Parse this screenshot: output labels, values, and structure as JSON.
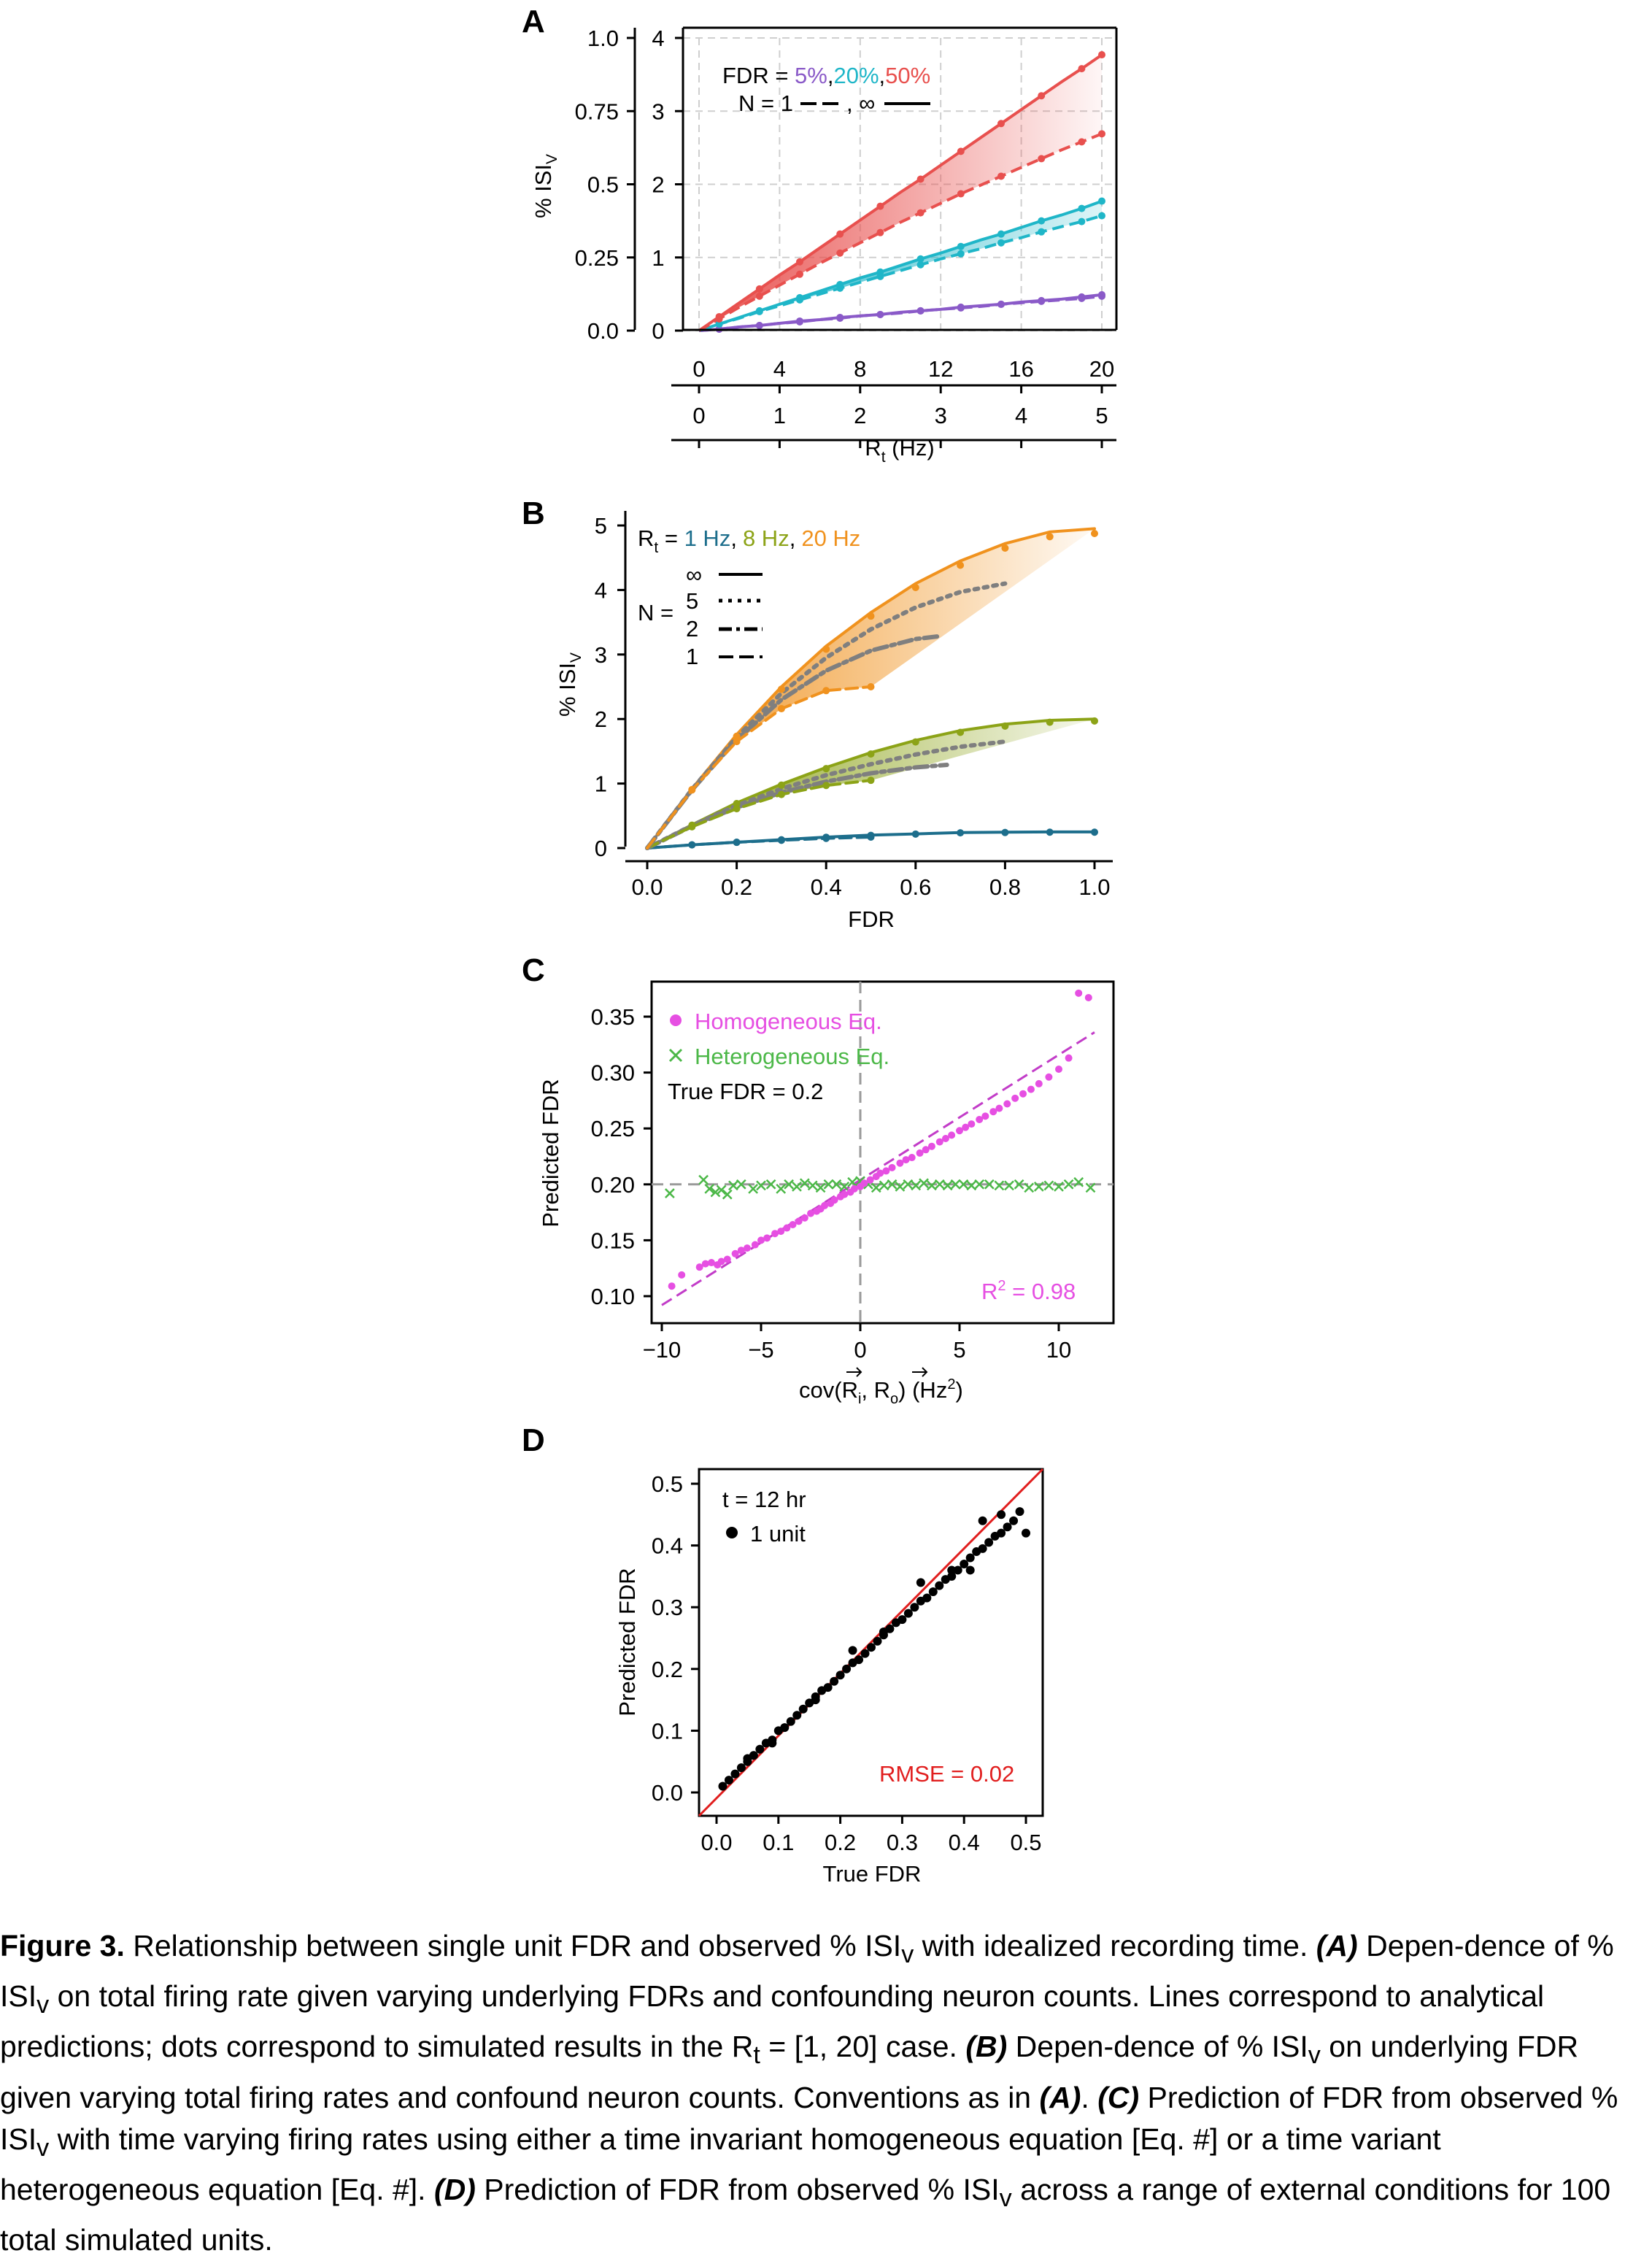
{
  "colors": {
    "fdr5": "#8A5AC8",
    "fdr20": "#1FB6C8",
    "fdr50": "#E8504E",
    "r1": "#1D6E8C",
    "r8": "#8CA317",
    "r20": "#F0921E",
    "homogeneous": "#E64FE2",
    "heterogeneous": "#4CB848",
    "fit": "#C23CC8",
    "rmse": "#E11E1E",
    "grid": "#cfcfcf"
  },
  "panels": {
    "a": {
      "letter": "A",
      "ylabel_main": "% ISI",
      "ylabel_sub": "V",
      "xlabel_main": "R",
      "xlabel_sub": "t",
      "xlabel_unit": " (Hz)",
      "legend_fdr_prefix": "FDR = ",
      "legend_fdr_5": "5%",
      "legend_fdr_20": "20%",
      "legend_fdr_50": "50%",
      "legend_comma": ",",
      "legend_n_prefix": "N = 1",
      "legend_n_mid": ", ∞"
    },
    "b": {
      "letter": "B",
      "ylabel_main": "% ISI",
      "ylabel_sub": "V",
      "xlabel": "FDR",
      "legend_rt_main": "R",
      "legend_rt_sub": "t",
      "legend_eq": " = ",
      "legend_r1": "1 Hz",
      "legend_r8": "8 Hz",
      "legend_r20": "20 Hz",
      "legend_comma": ",",
      "legend_n": "N =",
      "legend_ninf": "∞",
      "legend_n5": "5",
      "legend_n2": "2",
      "legend_n1": "1"
    },
    "c": {
      "letter": "C",
      "ylabel": "Predicted FDR",
      "xlabel_pre": "cov(",
      "xlabel_r": "R",
      "xlabel_i": "i",
      "xlabel_o": "o",
      "xlabel_sep": ", ",
      "xlabel_post": ") (Hz",
      "xlabel_sq": "2",
      "xlabel_end": ")",
      "legend_hom": "Homogeneous Eq.",
      "legend_het": "Heterogeneous Eq.",
      "true_fdr": "True FDR = 0.2",
      "r2_main": "R",
      "r2_sup": "2",
      "r2_val": " = 0.98"
    },
    "d": {
      "letter": "D",
      "ylabel": "Predicted FDR",
      "xlabel": "True FDR",
      "legend_t": "t = 12 hr",
      "legend_unit": "1 unit",
      "rmse": "RMSE = 0.02"
    }
  },
  "chart_data": [
    {
      "id": "A",
      "type": "line",
      "ylabel": "% ISIv",
      "xlabel": "Rt (Hz)",
      "x_top_ticks": [
        0,
        4,
        8,
        12,
        16,
        20
      ],
      "x_bottom_ticks": [
        0,
        1,
        2,
        3,
        4,
        5
      ],
      "y_right_ticks": [
        0,
        1,
        2,
        3,
        4
      ],
      "y_left_ticks": [
        "0.0",
        "0.25",
        "0.5",
        "0.75",
        "1.0"
      ],
      "xlim": [
        0,
        20
      ],
      "ylim": [
        0,
        4
      ],
      "grid": true,
      "legend_position": "top-left",
      "x": [
        0,
        1,
        2,
        3,
        4,
        5,
        6,
        7,
        8,
        9,
        10,
        11,
        12,
        13,
        14,
        15,
        16,
        17,
        18,
        19,
        20
      ],
      "series": [
        {
          "name": "5%",
          "N": "∞",
          "values": [
            0,
            0.02,
            0.05,
            0.07,
            0.1,
            0.13,
            0.15,
            0.18,
            0.2,
            0.22,
            0.25,
            0.27,
            0.29,
            0.32,
            0.34,
            0.36,
            0.39,
            0.41,
            0.43,
            0.46,
            0.49
          ]
        },
        {
          "name": "5%",
          "N": "1",
          "values": [
            0,
            0.02,
            0.05,
            0.07,
            0.1,
            0.12,
            0.15,
            0.17,
            0.2,
            0.22,
            0.24,
            0.27,
            0.29,
            0.31,
            0.33,
            0.36,
            0.38,
            0.4,
            0.42,
            0.44,
            0.47
          ]
        },
        {
          "name": "20%",
          "N": "∞",
          "values": [
            0,
            0.09,
            0.18,
            0.27,
            0.36,
            0.45,
            0.54,
            0.63,
            0.72,
            0.8,
            0.89,
            0.98,
            1.06,
            1.15,
            1.24,
            1.32,
            1.41,
            1.5,
            1.58,
            1.67,
            1.77
          ]
        },
        {
          "name": "20%",
          "N": "1",
          "values": [
            0,
            0.09,
            0.17,
            0.26,
            0.34,
            0.42,
            0.5,
            0.58,
            0.66,
            0.74,
            0.82,
            0.9,
            0.98,
            1.05,
            1.12,
            1.2,
            1.27,
            1.35,
            1.42,
            1.49,
            1.57
          ]
        },
        {
          "name": "50%",
          "N": "∞",
          "values": [
            0,
            0.19,
            0.38,
            0.57,
            0.76,
            0.94,
            1.13,
            1.32,
            1.51,
            1.7,
            1.89,
            2.07,
            2.26,
            2.45,
            2.64,
            2.83,
            3.02,
            3.21,
            3.4,
            3.58,
            3.77
          ]
        },
        {
          "name": "50%",
          "N": "1",
          "values": [
            0,
            0.16,
            0.32,
            0.47,
            0.62,
            0.77,
            0.92,
            1.06,
            1.2,
            1.34,
            1.48,
            1.61,
            1.74,
            1.87,
            1.99,
            2.11,
            2.23,
            2.35,
            2.47,
            2.58,
            2.69
          ]
        }
      ]
    },
    {
      "id": "B",
      "type": "line",
      "ylabel": "% ISIv",
      "xlabel": "FDR",
      "x_ticks": [
        "0.0",
        "0.2",
        "0.4",
        "0.6",
        "0.8",
        "1.0"
      ],
      "y_ticks": [
        0,
        1,
        2,
        3,
        4,
        5
      ],
      "xlim": [
        0,
        1
      ],
      "ylim": [
        0,
        5
      ],
      "grid": false,
      "legend_position": "top-left",
      "series": [
        {
          "name": "1 Hz",
          "N": "∞",
          "x": [
            0,
            0.1,
            0.2,
            0.3,
            0.4,
            0.5,
            0.6,
            0.7,
            0.8,
            0.9,
            1.0
          ],
          "values": [
            0,
            0.05,
            0.09,
            0.13,
            0.17,
            0.2,
            0.22,
            0.24,
            0.245,
            0.25,
            0.25
          ]
        },
        {
          "name": "1 Hz",
          "N": "1",
          "x": [
            0,
            0.1,
            0.2,
            0.3,
            0.4,
            0.5
          ],
          "values": [
            0,
            0.05,
            0.09,
            0.12,
            0.15,
            0.17
          ]
        },
        {
          "name": "8 Hz",
          "N": "∞",
          "x": [
            0,
            0.1,
            0.2,
            0.3,
            0.4,
            0.5,
            0.6,
            0.7,
            0.8,
            0.9,
            1.0
          ],
          "values": [
            0,
            0.36,
            0.7,
            0.99,
            1.25,
            1.48,
            1.67,
            1.82,
            1.92,
            1.98,
            2.0
          ]
        },
        {
          "name": "8 Hz",
          "N": "5",
          "x": [
            0,
            0.1,
            0.2,
            0.3,
            0.4,
            0.5,
            0.6,
            0.7,
            0.8
          ],
          "values": [
            0,
            0.35,
            0.66,
            0.92,
            1.13,
            1.3,
            1.45,
            1.57,
            1.65
          ]
        },
        {
          "name": "8 Hz",
          "N": "2",
          "x": [
            0,
            0.1,
            0.2,
            0.3,
            0.4,
            0.5,
            0.6,
            0.67
          ],
          "values": [
            0,
            0.34,
            0.63,
            0.86,
            1.03,
            1.16,
            1.25,
            1.29
          ]
        },
        {
          "name": "8 Hz",
          "N": "1",
          "x": [
            0,
            0.1,
            0.2,
            0.3,
            0.4,
            0.5
          ],
          "values": [
            0,
            0.33,
            0.61,
            0.83,
            0.97,
            1.05
          ]
        },
        {
          "name": "20 Hz",
          "N": "∞",
          "x": [
            0,
            0.1,
            0.2,
            0.3,
            0.4,
            0.5,
            0.6,
            0.7,
            0.8,
            0.9,
            1.0
          ],
          "values": [
            0,
            0.92,
            1.76,
            2.5,
            3.13,
            3.65,
            4.1,
            4.45,
            4.72,
            4.9,
            4.95
          ]
        },
        {
          "name": "20 Hz",
          "N": "5",
          "x": [
            0,
            0.1,
            0.2,
            0.3,
            0.4,
            0.5,
            0.6,
            0.7,
            0.8
          ],
          "values": [
            0,
            0.91,
            1.72,
            2.4,
            2.95,
            3.39,
            3.73,
            3.97,
            4.1
          ]
        },
        {
          "name": "20 Hz",
          "N": "2",
          "x": [
            0,
            0.1,
            0.2,
            0.3,
            0.4,
            0.5,
            0.6,
            0.65
          ],
          "values": [
            0,
            0.9,
            1.68,
            2.3,
            2.75,
            3.06,
            3.24,
            3.28
          ]
        },
        {
          "name": "20 Hz",
          "N": "1",
          "x": [
            0,
            0.1,
            0.2,
            0.3,
            0.4,
            0.5
          ],
          "values": [
            0,
            0.9,
            1.65,
            2.16,
            2.44,
            2.5
          ]
        }
      ]
    },
    {
      "id": "C",
      "type": "scatter",
      "ylabel": "Predicted FDR",
      "xlabel": "cov(Ri, Ro) (Hz²)",
      "x_ticks": [
        -10,
        -5,
        0,
        5,
        10
      ],
      "y_ticks": [
        "0.10",
        "0.15",
        "0.20",
        "0.25",
        "0.30",
        "0.35"
      ],
      "xlim": [
        -10.5,
        12.5
      ],
      "ylim": [
        0.085,
        0.385
      ],
      "grid": false,
      "legend_position": "top-left",
      "reference_lines": {
        "x": 0,
        "y": 0.2
      },
      "fit": {
        "x": [
          -10,
          11.8
        ],
        "y": [
          0.092,
          0.336
        ]
      },
      "series": [
        {
          "name": "Homogeneous Eq.",
          "x": [
            -9.5,
            -9.0,
            -8.1,
            -7.8,
            -7.5,
            -7.2,
            -7.0,
            -6.7,
            -6.3,
            -6.0,
            -5.7,
            -5.3,
            -5.0,
            -4.7,
            -4.3,
            -4.0,
            -3.7,
            -3.4,
            -3.1,
            -2.8,
            -2.5,
            -2.2,
            -2.0,
            -1.8,
            -1.5,
            -1.3,
            -1.0,
            -0.8,
            -0.5,
            -0.3,
            0,
            0.2,
            0.5,
            0.8,
            1.0,
            1.3,
            1.6,
            2.0,
            2.3,
            2.6,
            3.0,
            3.3,
            3.6,
            4.0,
            4.3,
            4.6,
            5.0,
            5.3,
            5.6,
            6.0,
            6.3,
            6.7,
            7.0,
            7.4,
            7.8,
            8.2,
            8.6,
            9.0,
            9.5,
            10.0,
            10.5,
            11.0,
            11.5
          ],
          "values": [
            0.109,
            0.119,
            0.126,
            0.129,
            0.13,
            0.128,
            0.131,
            0.133,
            0.138,
            0.141,
            0.143,
            0.146,
            0.15,
            0.152,
            0.156,
            0.158,
            0.161,
            0.164,
            0.167,
            0.17,
            0.174,
            0.176,
            0.178,
            0.181,
            0.183,
            0.186,
            0.189,
            0.191,
            0.193,
            0.196,
            0.198,
            0.201,
            0.204,
            0.207,
            0.21,
            0.212,
            0.215,
            0.219,
            0.222,
            0.224,
            0.228,
            0.231,
            0.234,
            0.238,
            0.241,
            0.244,
            0.248,
            0.251,
            0.254,
            0.258,
            0.261,
            0.265,
            0.268,
            0.272,
            0.277,
            0.281,
            0.285,
            0.29,
            0.296,
            0.303,
            0.313,
            0.371,
            0.367
          ]
        },
        {
          "name": "Heterogeneous Eq.",
          "x": [
            -9.6,
            -7.9,
            -7.6,
            -7.3,
            -7.0,
            -6.7,
            -6.4,
            -6.0,
            -5.4,
            -5.0,
            -4.5,
            -4.0,
            -3.6,
            -3.2,
            -2.8,
            -2.4,
            -2.0,
            -1.6,
            -1.2,
            -0.8,
            -0.4,
            0,
            0.4,
            0.8,
            1.2,
            1.6,
            2.0,
            2.4,
            2.8,
            3.2,
            3.6,
            4.0,
            4.4,
            4.8,
            5.2,
            5.6,
            6.0,
            6.5,
            7.0,
            7.5,
            8.0,
            8.5,
            9.0,
            9.5,
            10.0,
            10.5,
            11.0,
            11.6
          ],
          "values": [
            0.192,
            0.204,
            0.196,
            0.193,
            0.195,
            0.191,
            0.199,
            0.2,
            0.196,
            0.199,
            0.2,
            0.196,
            0.2,
            0.198,
            0.201,
            0.199,
            0.197,
            0.2,
            0.2,
            0.198,
            0.202,
            0.203,
            0.2,
            0.197,
            0.199,
            0.2,
            0.198,
            0.2,
            0.199,
            0.201,
            0.199,
            0.2,
            0.199,
            0.2,
            0.2,
            0.199,
            0.2,
            0.2,
            0.199,
            0.199,
            0.2,
            0.197,
            0.198,
            0.199,
            0.198,
            0.2,
            0.202,
            0.197
          ]
        }
      ]
    },
    {
      "id": "D",
      "type": "scatter",
      "ylabel": "Predicted FDR",
      "xlabel": "True FDR",
      "x_ticks": [
        "0.0",
        "0.1",
        "0.2",
        "0.3",
        "0.4",
        "0.5"
      ],
      "y_ticks": [
        "0.0",
        "0.1",
        "0.2",
        "0.3",
        "0.4",
        "0.5"
      ],
      "xlim": [
        -0.02,
        0.52
      ],
      "ylim": [
        -0.02,
        0.52
      ],
      "grid": false,
      "legend_position": "top-left",
      "identity_line": true,
      "series": [
        {
          "name": "1 unit",
          "x": [
            0.01,
            0.02,
            0.03,
            0.04,
            0.05,
            0.06,
            0.07,
            0.08,
            0.09,
            0.1,
            0.11,
            0.12,
            0.13,
            0.14,
            0.15,
            0.16,
            0.17,
            0.18,
            0.19,
            0.2,
            0.21,
            0.22,
            0.23,
            0.24,
            0.25,
            0.26,
            0.27,
            0.28,
            0.29,
            0.3,
            0.31,
            0.32,
            0.33,
            0.34,
            0.35,
            0.36,
            0.37,
            0.38,
            0.39,
            0.4,
            0.41,
            0.42,
            0.43,
            0.44,
            0.45,
            0.46,
            0.47,
            0.48,
            0.49,
            0.5,
            0.05,
            0.09,
            0.16,
            0.22,
            0.27,
            0.33,
            0.38,
            0.43,
            0.46,
            0.41
          ],
          "values": [
            0.01,
            0.02,
            0.03,
            0.04,
            0.05,
            0.06,
            0.07,
            0.08,
            0.085,
            0.1,
            0.105,
            0.115,
            0.125,
            0.135,
            0.145,
            0.155,
            0.165,
            0.17,
            0.18,
            0.19,
            0.2,
            0.21,
            0.215,
            0.225,
            0.235,
            0.245,
            0.255,
            0.265,
            0.275,
            0.28,
            0.29,
            0.3,
            0.31,
            0.315,
            0.325,
            0.335,
            0.345,
            0.35,
            0.36,
            0.37,
            0.38,
            0.39,
            0.395,
            0.405,
            0.415,
            0.42,
            0.43,
            0.44,
            0.455,
            0.42,
            0.055,
            0.08,
            0.15,
            0.23,
            0.26,
            0.34,
            0.36,
            0.44,
            0.45,
            0.36
          ]
        }
      ]
    }
  ],
  "caption": {
    "label": "Figure 3.",
    "s1": " Relationship between single unit FDR and observed % ISI",
    "s1_sub": "v",
    "s2": " with idealized recording time. ",
    "a_tag": "(A)",
    "s3": " Depen-dence of % ISI",
    "s3_sub": "v",
    "s4": " on total firing rate given varying underlying FDRs and confounding neuron counts. Lines correspond to analytical predictions; dots correspond to simulated results in the R",
    "s4_sub": "t",
    "s5": " = [1, 20] case. ",
    "b_tag": "(B)",
    "s6": " Depen-dence of % ISI",
    "s6_sub": "v",
    "s7": " on underlying FDR given varying total firing rates and confound neuron counts. Conventions as in ",
    "a_tag2": "(A)",
    "s8": ". ",
    "c_tag": "(C)",
    "s9": " Prediction of FDR from observed % ISI",
    "s9_sub": "v",
    "s10": " with time varying firing rates using either a time invariant homogeneous equation [Eq. #] or a time variant heterogeneous equation [Eq. #]. ",
    "d_tag": "(D)",
    "s11": " Prediction of FDR from observed % ISI",
    "s11_sub": "v",
    "s12": " across a range of external conditions for 100 total simulated units."
  }
}
